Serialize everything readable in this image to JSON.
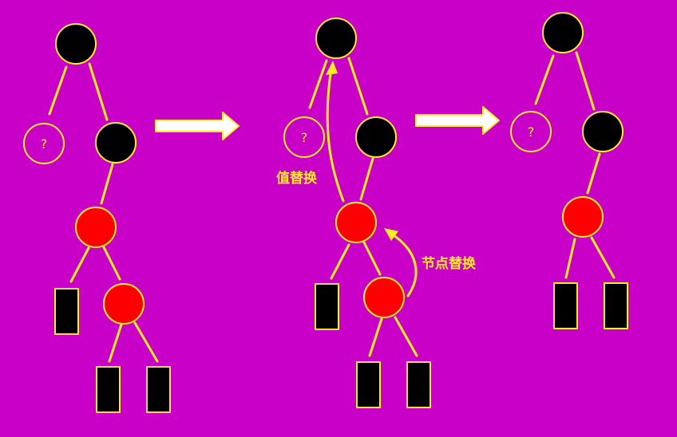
{
  "colors": {
    "background": "#c800c8",
    "edge": "#ffee22",
    "black_node": "#000000",
    "red_node": "#ff0000",
    "node_border": "#ffee22",
    "arrow_fill": "#ffffff",
    "arrow_border": "#ffee22",
    "annotation_text": "#ffee22"
  },
  "unknown_node_label": "?",
  "annotations": {
    "value_replace": "值替换",
    "node_replace": "节点替换"
  },
  "panels": [
    {
      "name": "before-replacement",
      "description_nodes": [
        "black",
        "?",
        "black",
        "red",
        "leaf",
        "red",
        "leaf",
        "leaf"
      ]
    },
    {
      "name": "during-replacement",
      "description_nodes": [
        "black",
        "?",
        "black",
        "red",
        "leaf",
        "red",
        "leaf",
        "leaf"
      ]
    },
    {
      "name": "after-replacement",
      "description_nodes": [
        "black",
        "?",
        "black",
        "red",
        "leaf",
        "leaf"
      ]
    }
  ]
}
